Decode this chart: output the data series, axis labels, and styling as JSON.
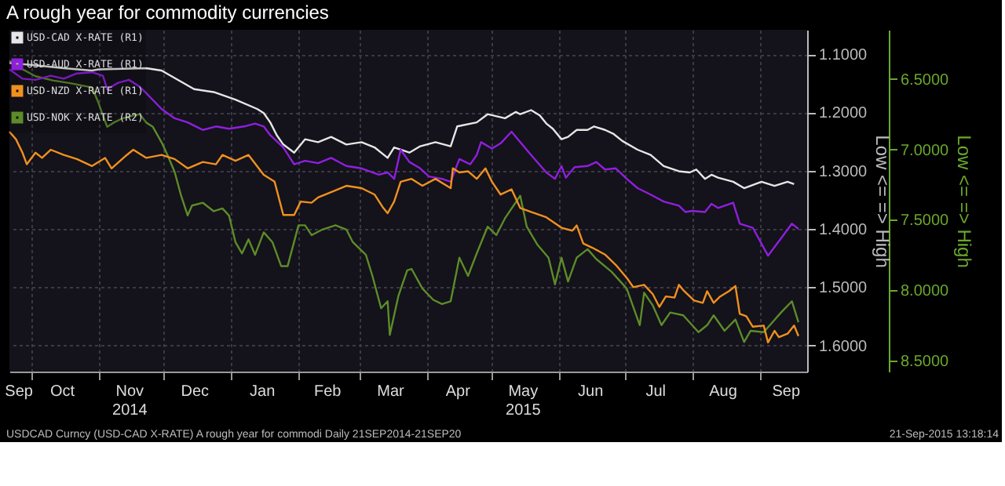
{
  "chart_data": {
    "type": "line",
    "title": "A rough year for commodity currencies",
    "ylabel": "Low <= => High",
    "y2label": "Low <= => High",
    "annotations": [
      "USDCAD Curncy (USD-CAD X-RATE) A rough year for commodi  Daily 21SEP2014-21SEP20",
      "21-Sep-2015 13:18:14"
    ],
    "xlim": [
      "2014-09-21",
      "2015-09-23"
    ],
    "xticks": [
      {
        "value": "2014-09-25",
        "label": "Sep"
      },
      {
        "value": "2014-10-01",
        "label": null
      },
      {
        "value": "2014-10-15",
        "label": "Oct"
      },
      {
        "value": "2014-11-01",
        "label": null
      },
      {
        "value": "2014-11-15",
        "label": "Nov\n2014"
      },
      {
        "value": "2014-12-01",
        "label": null
      },
      {
        "value": "2014-12-15",
        "label": "Dec"
      },
      {
        "value": "2015-01-01",
        "label": null
      },
      {
        "value": "2015-01-15",
        "label": "Jan"
      },
      {
        "value": "2015-02-01",
        "label": null
      },
      {
        "value": "2015-02-14",
        "label": "Feb"
      },
      {
        "value": "2015-03-01",
        "label": null
      },
      {
        "value": "2015-03-15",
        "label": "Mar"
      },
      {
        "value": "2015-04-01",
        "label": null
      },
      {
        "value": "2015-04-15",
        "label": "Apr"
      },
      {
        "value": "2015-05-01",
        "label": null
      },
      {
        "value": "2015-05-15",
        "label": "May\n2015"
      },
      {
        "value": "2015-06-01",
        "label": null
      },
      {
        "value": "2015-06-15",
        "label": "Jun"
      },
      {
        "value": "2015-07-01",
        "label": null
      },
      {
        "value": "2015-07-15",
        "label": "Jul"
      },
      {
        "value": "2015-08-01",
        "label": null
      },
      {
        "value": "2015-08-15",
        "label": "Aug"
      },
      {
        "value": "2015-09-01",
        "label": null
      },
      {
        "value": "2015-09-13",
        "label": "Sep"
      }
    ],
    "ylim": [
      1.645,
      1.058
    ],
    "yticks": [
      {
        "value": 1.1,
        "label": "1.1000"
      },
      {
        "value": 1.2,
        "label": "1.2000"
      },
      {
        "value": 1.3,
        "label": "1.3000"
      },
      {
        "value": 1.4,
        "label": "1.4000"
      },
      {
        "value": 1.5,
        "label": "1.5000"
      },
      {
        "value": 1.6,
        "label": "1.6000"
      }
    ],
    "y2lim": [
      8.58,
      6.15
    ],
    "y2ticks": [
      {
        "value": 6.5,
        "label": "6.5000"
      },
      {
        "value": 7.0,
        "label": "7.0000"
      },
      {
        "value": 7.5,
        "label": "7.5000"
      },
      {
        "value": 8.0,
        "label": "8.0000"
      },
      {
        "value": 8.5,
        "label": "8.5000"
      }
    ],
    "grid": true,
    "legend": "top left",
    "series": [
      {
        "name": "USD-CAD X-RATE (R1)",
        "color": "#e6e6e6",
        "x": [
          "2014-09-21",
          "2014-10-03",
          "2014-10-16",
          "2014-10-29",
          "2014-11-01",
          "2014-11-23",
          "2014-11-30",
          "2014-12-15",
          "2014-12-24",
          "2015-01-03",
          "2015-01-13",
          "2015-01-16",
          "2015-01-19",
          "2015-01-22",
          "2015-01-25",
          "2015-01-30",
          "2015-02-04",
          "2015-02-10",
          "2015-02-16",
          "2015-02-23",
          "2015-03-02",
          "2015-03-08",
          "2015-03-14",
          "2015-03-17",
          "2015-03-24",
          "2015-03-29",
          "2015-04-05",
          "2015-04-12",
          "2015-04-15",
          "2015-04-24",
          "2015-04-29",
          "2015-05-07",
          "2015-05-12",
          "2015-05-14",
          "2015-05-19",
          "2015-05-23",
          "2015-05-26",
          "2015-05-29",
          "2015-06-02",
          "2015-06-05",
          "2015-06-09",
          "2015-06-14",
          "2015-06-17",
          "2015-06-22",
          "2015-06-26",
          "2015-06-30",
          "2015-07-07",
          "2015-07-13",
          "2015-07-19",
          "2015-07-26",
          "2015-07-31",
          "2015-08-03",
          "2015-08-07",
          "2015-08-10",
          "2015-08-13",
          "2015-08-20",
          "2015-08-25",
          "2015-09-02",
          "2015-09-08",
          "2015-09-14",
          "2015-09-17"
        ],
        "values": [
          1.115,
          1.119,
          1.124,
          1.128,
          1.126,
          1.124,
          1.128,
          1.16,
          1.165,
          1.178,
          1.194,
          1.201,
          1.217,
          1.239,
          1.255,
          1.269,
          1.246,
          1.251,
          1.242,
          1.255,
          1.251,
          1.26,
          1.278,
          1.26,
          1.269,
          1.258,
          1.251,
          1.258,
          1.224,
          1.217,
          1.203,
          1.21,
          1.199,
          1.203,
          1.196,
          1.205,
          1.219,
          1.228,
          1.246,
          1.242,
          1.23,
          1.23,
          1.224,
          1.23,
          1.237,
          1.249,
          1.264,
          1.273,
          1.292,
          1.301,
          1.303,
          1.298,
          1.314,
          1.307,
          1.312,
          1.319,
          1.33,
          1.319,
          1.326,
          1.319,
          1.323
        ]
      },
      {
        "name": "USD-AUD X-RATE (R1)",
        "color": "#8f1fe0",
        "x": [
          "2014-09-21",
          "2014-09-27",
          "2014-10-03",
          "2014-10-10",
          "2014-10-16",
          "2014-10-22",
          "2014-10-29",
          "2014-11-03",
          "2014-11-05",
          "2014-11-10",
          "2014-11-15",
          "2014-11-20",
          "2014-11-23",
          "2014-11-30",
          "2014-12-06",
          "2014-12-12",
          "2014-12-19",
          "2014-12-25",
          "2014-12-31",
          "2015-01-07",
          "2015-01-12",
          "2015-01-16",
          "2015-01-19",
          "2015-01-25",
          "2015-01-30",
          "2015-02-04",
          "2015-02-10",
          "2015-02-16",
          "2015-02-23",
          "2015-03-02",
          "2015-03-10",
          "2015-03-14",
          "2015-03-17",
          "2015-03-20",
          "2015-03-24",
          "2015-03-29",
          "2015-04-02",
          "2015-04-08",
          "2015-04-12",
          "2015-04-16",
          "2015-04-21",
          "2015-04-24",
          "2015-04-26",
          "2015-05-01",
          "2015-05-05",
          "2015-05-10",
          "2015-05-14",
          "2015-05-19",
          "2015-05-26",
          "2015-05-30",
          "2015-06-02",
          "2015-06-04",
          "2015-06-08",
          "2015-06-14",
          "2015-06-18",
          "2015-06-22",
          "2015-06-27",
          "2015-07-02",
          "2015-07-07",
          "2015-07-13",
          "2015-07-19",
          "2015-07-26",
          "2015-07-29",
          "2015-08-01",
          "2015-08-07",
          "2015-08-10",
          "2015-08-13",
          "2015-08-20",
          "2015-08-23",
          "2015-08-29",
          "2015-09-05",
          "2015-09-11",
          "2015-09-16",
          "2015-09-19"
        ],
        "values": [
          1.126,
          1.142,
          1.144,
          1.137,
          1.142,
          1.133,
          1.131,
          1.137,
          1.16,
          1.149,
          1.144,
          1.156,
          1.167,
          1.194,
          1.21,
          1.217,
          1.23,
          1.224,
          1.228,
          1.224,
          1.219,
          1.224,
          1.239,
          1.26,
          1.289,
          1.283,
          1.287,
          1.278,
          1.292,
          1.296,
          1.307,
          1.303,
          1.314,
          1.264,
          1.285,
          1.296,
          1.31,
          1.314,
          1.319,
          1.28,
          1.289,
          1.273,
          1.251,
          1.262,
          1.253,
          1.233,
          1.251,
          1.273,
          1.303,
          1.314,
          1.292,
          1.312,
          1.294,
          1.292,
          1.285,
          1.298,
          1.296,
          1.314,
          1.33,
          1.341,
          1.353,
          1.36,
          1.371,
          1.369,
          1.371,
          1.357,
          1.364,
          1.355,
          1.391,
          1.398,
          1.446,
          1.416,
          1.391,
          1.4
        ]
      },
      {
        "name": "USD-NZD X-RATE (R1)",
        "color": "#f0911f",
        "x": [
          "2014-09-21",
          "2014-09-24",
          "2014-09-27",
          "2014-09-29",
          "2014-10-03",
          "2014-10-06",
          "2014-10-10",
          "2014-10-16",
          "2014-10-22",
          "2014-10-29",
          "2014-11-04",
          "2014-11-07",
          "2014-11-14",
          "2014-11-17",
          "2014-11-23",
          "2014-11-30",
          "2014-12-06",
          "2014-12-12",
          "2014-12-19",
          "2014-12-25",
          "2014-12-28",
          "2015-01-03",
          "2015-01-09",
          "2015-01-16",
          "2015-01-21",
          "2015-01-25",
          "2015-01-30",
          "2015-02-02",
          "2015-02-07",
          "2015-02-10",
          "2015-02-16",
          "2015-02-23",
          "2015-03-02",
          "2015-03-08",
          "2015-03-12",
          "2015-03-14",
          "2015-03-17",
          "2015-03-20",
          "2015-03-25",
          "2015-03-30",
          "2015-04-05",
          "2015-04-12",
          "2015-04-13",
          "2015-04-16",
          "2015-04-20",
          "2015-04-24",
          "2015-04-28",
          "2015-05-01",
          "2015-05-05",
          "2015-05-10",
          "2015-05-14",
          "2015-05-19",
          "2015-05-26",
          "2015-06-02",
          "2015-06-07",
          "2015-06-09",
          "2015-06-12",
          "2015-06-16",
          "2015-06-22",
          "2015-06-27",
          "2015-07-02",
          "2015-07-05",
          "2015-07-10",
          "2015-07-14",
          "2015-07-17",
          "2015-07-20",
          "2015-07-24",
          "2015-07-26",
          "2015-07-28",
          "2015-08-02",
          "2015-08-06",
          "2015-08-08",
          "2015-08-11",
          "2015-08-14",
          "2015-08-18",
          "2015-08-21",
          "2015-08-23",
          "2015-08-26",
          "2015-08-29",
          "2015-09-03",
          "2015-09-05",
          "2015-09-08",
          "2015-09-10",
          "2015-09-14",
          "2015-09-17",
          "2015-09-19"
        ],
        "values": [
          1.233,
          1.246,
          1.269,
          1.289,
          1.269,
          1.278,
          1.264,
          1.273,
          1.28,
          1.292,
          1.278,
          1.296,
          1.273,
          1.264,
          1.278,
          1.273,
          1.28,
          1.296,
          1.285,
          1.289,
          1.273,
          1.283,
          1.273,
          1.307,
          1.319,
          1.376,
          1.376,
          1.353,
          1.355,
          1.346,
          1.337,
          1.326,
          1.33,
          1.341,
          1.364,
          1.373,
          1.353,
          1.319,
          1.314,
          1.326,
          1.314,
          1.33,
          1.296,
          1.303,
          1.301,
          1.314,
          1.296,
          1.319,
          1.341,
          1.332,
          1.364,
          1.371,
          1.38,
          1.398,
          1.403,
          1.394,
          1.425,
          1.432,
          1.444,
          1.462,
          1.484,
          1.5,
          1.496,
          1.512,
          1.534,
          1.516,
          1.518,
          1.496,
          1.505,
          1.523,
          1.527,
          1.507,
          1.527,
          1.516,
          1.507,
          1.498,
          1.546,
          1.55,
          1.568,
          1.566,
          1.595,
          1.575,
          1.586,
          1.58,
          1.566,
          1.584
        ]
      },
      {
        "name": "USD-NOK X-RATE (R2)",
        "color": "#5c8c2a",
        "axis": "y2",
        "x": [
          "2014-09-21",
          "2014-09-27",
          "2014-10-03",
          "2014-10-11",
          "2014-10-19",
          "2014-10-29",
          "2014-11-01",
          "2014-11-03",
          "2014-11-05",
          "2014-11-08",
          "2014-11-12",
          "2014-11-17",
          "2014-11-20",
          "2014-11-23",
          "2014-11-26",
          "2014-11-30",
          "2014-12-03",
          "2014-12-06",
          "2014-12-09",
          "2014-12-12",
          "2014-12-14",
          "2014-12-19",
          "2014-12-24",
          "2014-12-28",
          "2014-12-31",
          "2015-01-03",
          "2015-01-06",
          "2015-01-09",
          "2015-01-12",
          "2015-01-16",
          "2015-01-20",
          "2015-01-24",
          "2015-01-27",
          "2015-02-01",
          "2015-02-04",
          "2015-02-07",
          "2015-02-12",
          "2015-02-18",
          "2015-02-23",
          "2015-02-26",
          "2015-03-04",
          "2015-03-07",
          "2015-03-11",
          "2015-03-14",
          "2015-03-15",
          "2015-03-19",
          "2015-03-23",
          "2015-03-25",
          "2015-03-30",
          "2015-04-04",
          "2015-04-08",
          "2015-04-12",
          "2015-04-16",
          "2015-04-20",
          "2015-04-24",
          "2015-04-29",
          "2015-05-03",
          "2015-05-07",
          "2015-05-14",
          "2015-05-17",
          "2015-05-22",
          "2015-05-27",
          "2015-05-30",
          "2015-06-02",
          "2015-06-05",
          "2015-06-09",
          "2015-06-14",
          "2015-06-18",
          "2015-06-25",
          "2015-07-02",
          "2015-07-08",
          "2015-07-10",
          "2015-07-14",
          "2015-07-18",
          "2015-07-22",
          "2015-07-28",
          "2015-08-04",
          "2015-08-08",
          "2015-08-11",
          "2015-08-16",
          "2015-08-21",
          "2015-08-25",
          "2015-08-28",
          "2015-09-03",
          "2015-09-07",
          "2015-09-11",
          "2015-09-16",
          "2015-09-19"
        ],
        "values": [
          6.37,
          6.43,
          6.48,
          6.51,
          6.53,
          6.56,
          6.67,
          6.76,
          6.84,
          6.81,
          6.78,
          6.76,
          6.75,
          6.81,
          6.84,
          6.95,
          7.05,
          7.16,
          7.33,
          7.47,
          7.4,
          7.38,
          7.44,
          7.42,
          7.47,
          7.66,
          7.74,
          7.64,
          7.75,
          7.59,
          7.66,
          7.83,
          7.83,
          7.54,
          7.54,
          7.61,
          7.57,
          7.54,
          7.57,
          7.66,
          7.75,
          7.9,
          8.13,
          8.08,
          8.32,
          8.04,
          7.86,
          7.85,
          7.99,
          8.07,
          8.1,
          8.08,
          7.77,
          7.9,
          7.74,
          7.55,
          7.61,
          7.49,
          7.33,
          7.55,
          7.68,
          7.77,
          7.96,
          7.77,
          7.94,
          7.77,
          7.71,
          7.78,
          7.87,
          7.99,
          8.25,
          8.02,
          8.11,
          8.25,
          8.16,
          8.18,
          8.3,
          8.25,
          8.18,
          8.29,
          8.21,
          8.37,
          8.29,
          8.3,
          8.23,
          8.16,
          8.08,
          8.23
        ]
      }
    ]
  }
}
